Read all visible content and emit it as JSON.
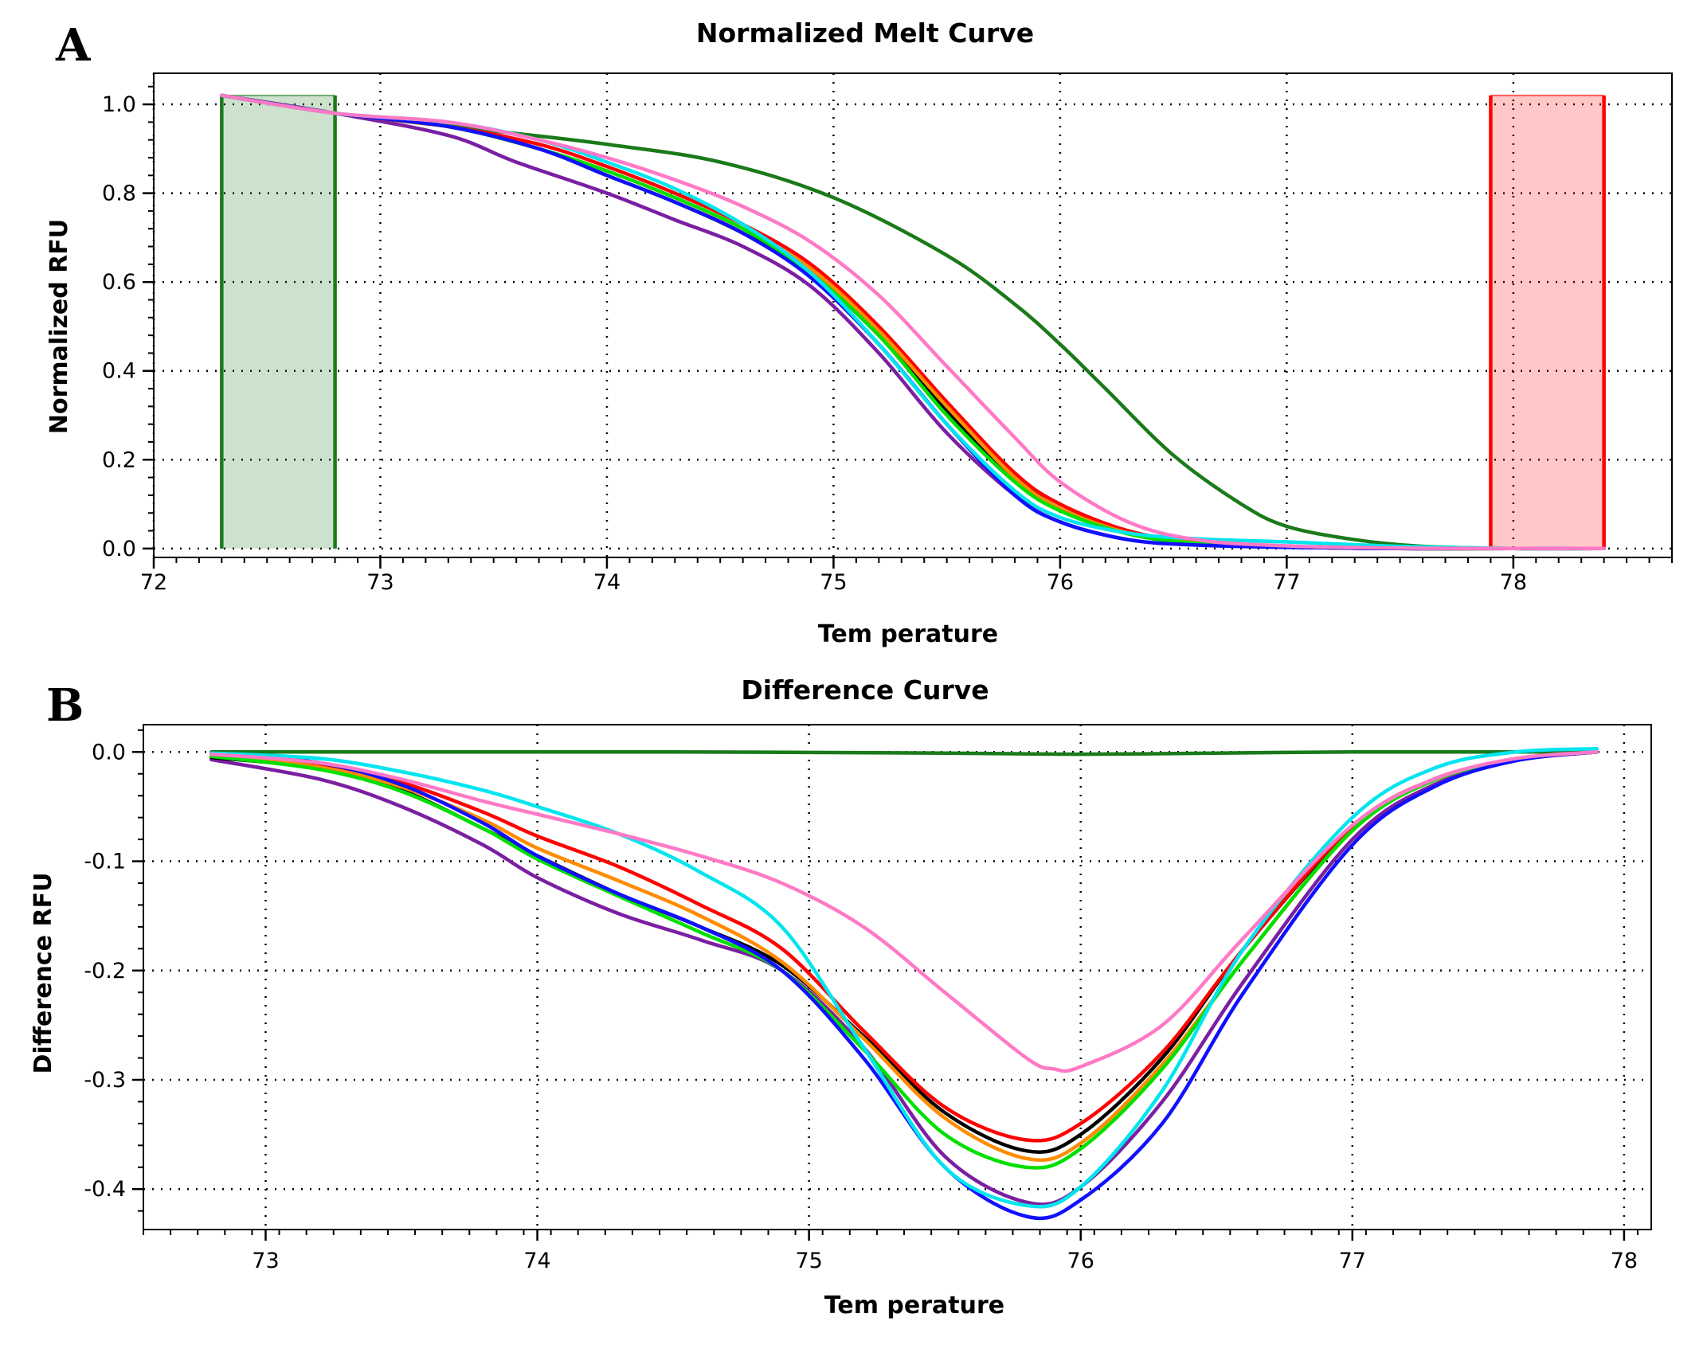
{
  "series_colors": {
    "dark_green": "#1a7a1a",
    "purple": "#7b1fa2",
    "black": "#000000",
    "red": "#ff0000",
    "orange": "#ff8c00",
    "green": "#00e000",
    "blue": "#1010ff",
    "cyan": "#00e5ee",
    "pink": "#ff79c6"
  },
  "chart_data": [
    {
      "panel": "A",
      "type": "line",
      "title": "Normalized Melt Curve",
      "xlabel": "Tem perature",
      "ylabel": "Normalized RFU",
      "xlim": [
        72,
        78.7
      ],
      "ylim": [
        -0.02,
        1.07
      ],
      "xticks": [
        "72",
        "73",
        "74",
        "75",
        "76",
        "77",
        "78"
      ],
      "yticks": [
        "0.0",
        "0.2",
        "0.4",
        "0.6",
        "0.8",
        "1.0"
      ],
      "grid": true,
      "regions": [
        {
          "name": "pre-melt",
          "x": [
            72.3,
            72.8
          ],
          "y": [
            0,
            1.02
          ],
          "color": "#1a7a1a"
        },
        {
          "name": "post-melt",
          "x": [
            77.9,
            78.4
          ],
          "y": [
            0,
            1.02
          ],
          "color": "#ff0000"
        }
      ],
      "series": [
        {
          "name": "dark_green",
          "color": "#1a7a1a",
          "x": [
            72.3,
            72.8,
            73.5,
            74,
            74.5,
            75,
            75.5,
            75.8,
            76,
            76.2,
            76.5,
            76.8,
            77,
            77.3,
            77.6,
            78,
            78.4
          ],
          "y": [
            1.02,
            0.98,
            0.94,
            0.91,
            0.87,
            0.79,
            0.66,
            0.55,
            0.46,
            0.36,
            0.21,
            0.1,
            0.05,
            0.02,
            0.005,
            0,
            0
          ]
        },
        {
          "name": "purple",
          "color": "#7b1fa2",
          "x": [
            72.3,
            72.8,
            73.3,
            73.6,
            74,
            74.3,
            74.6,
            74.9,
            75.2,
            75.5,
            75.8,
            76,
            76.3,
            76.6,
            77,
            77.5,
            78,
            78.4
          ],
          "y": [
            1.02,
            0.98,
            0.93,
            0.87,
            0.8,
            0.74,
            0.68,
            0.59,
            0.44,
            0.26,
            0.12,
            0.06,
            0.02,
            0.008,
            0.003,
            0,
            0,
            0
          ]
        },
        {
          "name": "black",
          "color": "#000000",
          "x": [
            72.3,
            72.8,
            73.3,
            73.7,
            74,
            74.3,
            74.6,
            74.9,
            75.2,
            75.5,
            75.8,
            76,
            76.3,
            76.6,
            77,
            77.5,
            78,
            78.4
          ],
          "y": [
            1.02,
            0.98,
            0.95,
            0.9,
            0.84,
            0.78,
            0.71,
            0.62,
            0.48,
            0.31,
            0.16,
            0.09,
            0.035,
            0.013,
            0.004,
            0,
            0,
            0
          ]
        },
        {
          "name": "red",
          "color": "#ff0000",
          "x": [
            72.3,
            72.8,
            73.3,
            73.7,
            74,
            74.3,
            74.6,
            74.9,
            75.2,
            75.5,
            75.8,
            76,
            76.3,
            76.6,
            77,
            77.5,
            78,
            78.4
          ],
          "y": [
            1.02,
            0.98,
            0.95,
            0.91,
            0.86,
            0.8,
            0.73,
            0.64,
            0.5,
            0.33,
            0.17,
            0.1,
            0.04,
            0.015,
            0.005,
            0.001,
            0,
            0
          ]
        },
        {
          "name": "orange",
          "color": "#ff8c00",
          "x": [
            72.3,
            72.8,
            73.3,
            73.7,
            74,
            74.3,
            74.6,
            74.9,
            75.2,
            75.5,
            75.8,
            76,
            76.3,
            76.6,
            77,
            77.5,
            78,
            78.4
          ],
          "y": [
            1.02,
            0.98,
            0.95,
            0.9,
            0.85,
            0.79,
            0.72,
            0.63,
            0.49,
            0.32,
            0.16,
            0.09,
            0.035,
            0.013,
            0.004,
            0,
            0,
            0
          ]
        },
        {
          "name": "green",
          "color": "#00e000",
          "x": [
            72.3,
            72.8,
            73.3,
            73.7,
            74,
            74.3,
            74.6,
            74.9,
            75.2,
            75.5,
            75.8,
            76,
            76.3,
            76.6,
            77,
            77.5,
            78,
            78.4
          ],
          "y": [
            1.02,
            0.98,
            0.95,
            0.9,
            0.85,
            0.79,
            0.72,
            0.62,
            0.48,
            0.3,
            0.15,
            0.085,
            0.033,
            0.012,
            0.004,
            0,
            0,
            0
          ]
        },
        {
          "name": "blue",
          "color": "#1010ff",
          "x": [
            72.3,
            72.8,
            73.3,
            73.7,
            74,
            74.3,
            74.6,
            74.9,
            75.2,
            75.5,
            75.8,
            76,
            76.3,
            76.6,
            77,
            77.5,
            78,
            78.4
          ],
          "y": [
            1.02,
            0.98,
            0.95,
            0.9,
            0.84,
            0.78,
            0.71,
            0.61,
            0.46,
            0.28,
            0.12,
            0.06,
            0.02,
            0.008,
            0.003,
            0,
            0,
            0
          ]
        },
        {
          "name": "cyan",
          "color": "#00e5ee",
          "x": [
            72.3,
            72.8,
            73.3,
            73.7,
            74,
            74.3,
            74.6,
            74.9,
            75.2,
            75.5,
            75.8,
            76,
            76.3,
            76.6,
            77,
            77.5,
            78,
            78.4
          ],
          "y": [
            1.02,
            0.98,
            0.96,
            0.92,
            0.87,
            0.81,
            0.73,
            0.62,
            0.46,
            0.28,
            0.13,
            0.07,
            0.035,
            0.022,
            0.015,
            0.005,
            0,
            0
          ]
        },
        {
          "name": "pink",
          "color": "#ff79c6",
          "x": [
            72.3,
            72.8,
            73.3,
            73.7,
            74,
            74.3,
            74.6,
            74.9,
            75.2,
            75.5,
            75.8,
            76,
            76.3,
            76.6,
            77,
            77.5,
            78,
            78.4
          ],
          "y": [
            1.02,
            0.98,
            0.96,
            0.92,
            0.88,
            0.83,
            0.77,
            0.69,
            0.57,
            0.41,
            0.25,
            0.15,
            0.06,
            0.02,
            0.006,
            0.001,
            0,
            0
          ]
        }
      ]
    },
    {
      "panel": "B",
      "type": "line",
      "title": "Difference Curve",
      "xlabel": "Tem perature",
      "ylabel": "Difference RFU",
      "xlim": [
        72.55,
        78.1
      ],
      "ylim": [
        -0.437,
        0.025
      ],
      "xticks": [
        "73",
        "74",
        "75",
        "76",
        "77",
        "78"
      ],
      "yticks": [
        "0.0",
        "-0.1",
        "-0.2",
        "-0.3",
        "-0.4"
      ],
      "grid": true,
      "series": [
        {
          "name": "dark_green",
          "color": "#1a7a1a",
          "x": [
            72.8,
            73.5,
            74.5,
            75.5,
            76,
            76.5,
            77,
            77.5,
            77.9
          ],
          "y": [
            0,
            0,
            0,
            -0.001,
            -0.002,
            -0.001,
            0,
            0,
            0
          ]
        },
        {
          "name": "purple",
          "color": "#7b1fa2",
          "x": [
            72.8,
            73.2,
            73.5,
            73.8,
            74,
            74.3,
            74.6,
            74.9,
            75.2,
            75.5,
            75.8,
            76,
            76.3,
            76.6,
            77,
            77.3,
            77.6,
            77.9
          ],
          "y": [
            -0.007,
            -0.025,
            -0.05,
            -0.085,
            -0.115,
            -0.148,
            -0.172,
            -0.2,
            -0.27,
            -0.37,
            -0.412,
            -0.398,
            -0.32,
            -0.21,
            -0.08,
            -0.03,
            -0.008,
            0
          ]
        },
        {
          "name": "black",
          "color": "#000000",
          "x": [
            72.8,
            73.2,
            73.5,
            73.8,
            74,
            74.3,
            74.6,
            74.9,
            75.2,
            75.5,
            75.8,
            76,
            76.3,
            76.6,
            77,
            77.3,
            77.6,
            77.9
          ],
          "y": [
            -0.005,
            -0.015,
            -0.035,
            -0.07,
            -0.095,
            -0.13,
            -0.16,
            -0.195,
            -0.26,
            -0.33,
            -0.365,
            -0.35,
            -0.28,
            -0.18,
            -0.07,
            -0.025,
            -0.007,
            0
          ]
        },
        {
          "name": "red",
          "color": "#ff0000",
          "x": [
            72.8,
            73.2,
            73.5,
            73.8,
            74,
            74.3,
            74.6,
            74.9,
            75.2,
            75.5,
            75.8,
            76,
            76.3,
            76.6,
            77,
            77.3,
            77.6,
            77.9
          ],
          "y": [
            -0.003,
            -0.012,
            -0.028,
            -0.055,
            -0.077,
            -0.105,
            -0.14,
            -0.18,
            -0.255,
            -0.325,
            -0.355,
            -0.34,
            -0.275,
            -0.18,
            -0.068,
            -0.025,
            -0.007,
            0
          ]
        },
        {
          "name": "orange",
          "color": "#ff8c00",
          "x": [
            72.8,
            73.2,
            73.5,
            73.8,
            74,
            74.3,
            74.6,
            74.9,
            75.2,
            75.5,
            75.8,
            76,
            76.3,
            76.6,
            77,
            77.3,
            77.6,
            77.9
          ],
          "y": [
            -0.003,
            -0.014,
            -0.032,
            -0.062,
            -0.088,
            -0.118,
            -0.15,
            -0.192,
            -0.262,
            -0.335,
            -0.372,
            -0.358,
            -0.286,
            -0.19,
            -0.072,
            -0.026,
            -0.007,
            0
          ]
        },
        {
          "name": "green",
          "color": "#00e000",
          "x": [
            72.8,
            73.2,
            73.5,
            73.8,
            74,
            74.3,
            74.6,
            74.9,
            75.2,
            75.5,
            75.8,
            76,
            76.3,
            76.6,
            77,
            77.3,
            77.6,
            77.9
          ],
          "y": [
            -0.004,
            -0.016,
            -0.036,
            -0.07,
            -0.098,
            -0.132,
            -0.165,
            -0.2,
            -0.272,
            -0.35,
            -0.38,
            -0.363,
            -0.29,
            -0.19,
            -0.072,
            -0.026,
            -0.007,
            0
          ]
        },
        {
          "name": "blue",
          "color": "#1010ff",
          "x": [
            72.8,
            73.2,
            73.5,
            73.8,
            74,
            74.3,
            74.6,
            74.9,
            75.2,
            75.5,
            75.8,
            76,
            76.3,
            76.6,
            77,
            77.3,
            77.6,
            77.9
          ],
          "y": [
            -0.001,
            -0.01,
            -0.03,
            -0.065,
            -0.095,
            -0.13,
            -0.16,
            -0.2,
            -0.28,
            -0.38,
            -0.425,
            -0.41,
            -0.34,
            -0.22,
            -0.085,
            -0.032,
            -0.008,
            0
          ]
        },
        {
          "name": "cyan",
          "color": "#00e5ee",
          "x": [
            72.8,
            73.2,
            73.5,
            73.8,
            74,
            74.3,
            74.6,
            74.9,
            75.2,
            75.5,
            75.8,
            76,
            76.3,
            76.6,
            77,
            77.3,
            77.6,
            77.9
          ],
          "y": [
            -0.001,
            -0.006,
            -0.018,
            -0.035,
            -0.05,
            -0.075,
            -0.11,
            -0.16,
            -0.27,
            -0.38,
            -0.415,
            -0.398,
            -0.31,
            -0.18,
            -0.06,
            -0.015,
            0,
            0.003
          ]
        },
        {
          "name": "pink",
          "color": "#ff79c6",
          "x": [
            72.8,
            73.2,
            73.5,
            73.8,
            74,
            74.3,
            74.6,
            74.9,
            75.2,
            75.5,
            75.8,
            75.9,
            76,
            76.3,
            76.6,
            77,
            77.3,
            77.6,
            77.9
          ],
          "y": [
            -0.002,
            -0.01,
            -0.025,
            -0.045,
            -0.057,
            -0.075,
            -0.095,
            -0.12,
            -0.16,
            -0.22,
            -0.28,
            -0.29,
            -0.288,
            -0.25,
            -0.17,
            -0.067,
            -0.025,
            -0.006,
            0
          ]
        }
      ]
    }
  ]
}
